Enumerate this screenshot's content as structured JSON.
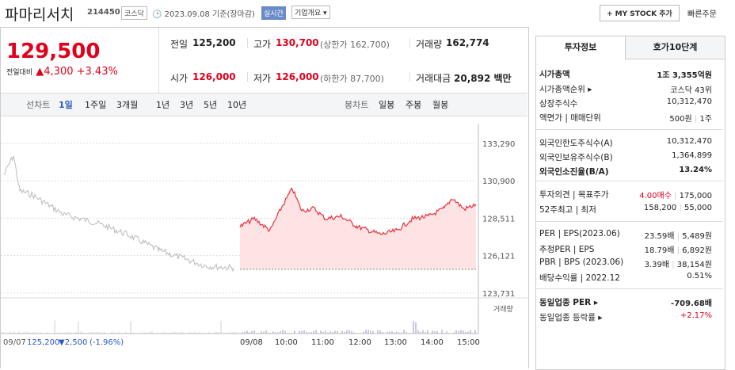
{
  "header": {
    "name": "파마리서치",
    "code": "214450",
    "market": "코스닥",
    "date": "2023.09.08 기준(장마감)",
    "realtime": "실시간",
    "company": "기업개요",
    "mystock": "+ MY STOCK 추가",
    "order": "빠른주문"
  },
  "price": {
    "current": "129,500",
    "change_label": "전일대비",
    "change": "▲4,300",
    "rate": "+3.43%"
  },
  "summary": [
    [
      {
        "label": "전일",
        "value": "125,200"
      },
      {
        "label": "고가",
        "value": "130,700",
        "note": "(상한가 162,700)"
      },
      {
        "label": "거래량",
        "value": "162,774"
      }
    ],
    [
      {
        "label": "시가",
        "value": "126,000"
      },
      {
        "label": "저가",
        "value": "126,000",
        "note": "(하한가 87,700)"
      },
      {
        "label": "거래대금",
        "value": "20,892 백만"
      }
    ]
  ],
  "chart_tabs": {
    "line_label": "선차트",
    "line": [
      "1일",
      "1주일",
      "3개월",
      "1년",
      "3년",
      "5년",
      "10년"
    ],
    "candle_label": "봉차트",
    "candle": [
      "일봉",
      "주봉",
      "월봉"
    ]
  },
  "chart": {
    "yticks": [
      "133,290",
      "130,900",
      "128,511",
      "126,121",
      "123,731"
    ],
    "volume_label": "거래량",
    "prev_date": "09/07",
    "prev_close": "125,200",
    "prev_change": "▼2,500",
    "prev_rate": "(-1.96%)",
    "xticks": [
      "09/08",
      "10:00",
      "11:00",
      "12:00",
      "13:00",
      "14:00",
      "15:00"
    ]
  },
  "info": {
    "tabs": [
      "투자정보",
      "호가10단계"
    ],
    "groups": [
      [
        {
          "label": "시가총액",
          "values": [
            "1조 3,355억원"
          ],
          "style": "bold"
        },
        {
          "label": "시가총액순위 ▸",
          "values": [
            "코스닥 43위"
          ]
        },
        {
          "label": "상장주식수",
          "values": [
            "10,312,470"
          ]
        },
        {
          "label": "액면가 | 매매단위",
          "values": [
            "500원",
            "1주"
          ]
        }
      ],
      [
        {
          "label": "외국인한도주식수(A)",
          "values": [
            "10,312,470"
          ]
        },
        {
          "label": "외국인보유주식수(B)",
          "values": [
            "1,364,899"
          ]
        },
        {
          "label": "외국인소진율(B/A)",
          "values": [
            "13.24%"
          ],
          "style": "bold"
        }
      ],
      [
        {
          "label": "투자의견 | 목표주가",
          "values": [
            "4.00매수",
            "175,000"
          ],
          "style": "red-first"
        },
        {
          "label": "52주최고 | 최저",
          "values": [
            "158,200",
            "55,000"
          ]
        }
      ],
      [
        {
          "label": "PER | EPS(2023.06)",
          "values": [
            "23.59배",
            "5,489원"
          ]
        },
        {
          "label": "추정PER | EPS",
          "values": [
            "18.79배",
            "6,892원"
          ]
        },
        {
          "label": "PBR | BPS (2023.06)",
          "values": [
            "3.39배",
            "38,154원"
          ]
        },
        {
          "label": "배당수익률 | 2022.12",
          "values": [
            "0.51%"
          ]
        }
      ],
      [
        {
          "label": "동일업종 PER ▸",
          "values": [
            "-709.68배"
          ],
          "style": "bold"
        },
        {
          "label": "동일업종 등락률 ▸",
          "values": [
            "+2.17%"
          ],
          "style": "red"
        }
      ]
    ]
  }
}
